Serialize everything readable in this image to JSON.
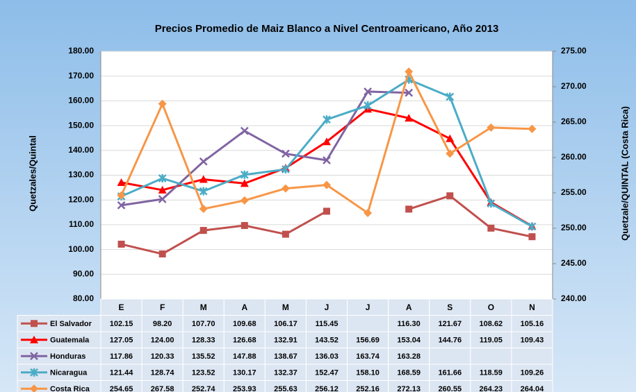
{
  "chart_data": {
    "type": "line",
    "title": "Precios Promedio de Maiz Blanco a Nivel Centroamericano, Año 2013",
    "y_label": "Quetzales/Quintal",
    "y2_label": "Quetzale/QUINTAL (Costa Rica)",
    "categories": [
      "E",
      "F",
      "M",
      "A",
      "M",
      "J",
      "J",
      "A",
      "S",
      "O",
      "N"
    ],
    "ylim": [
      80,
      180
    ],
    "yticks": [
      {
        "value": 80,
        "label": "80.00"
      },
      {
        "value": 90,
        "label": "90.00"
      },
      {
        "value": 100,
        "label": "100.00"
      },
      {
        "value": 110,
        "label": "110.00"
      },
      {
        "value": 120,
        "label": "120.00"
      },
      {
        "value": 130,
        "label": "130.00"
      },
      {
        "value": 140,
        "label": "140.00"
      },
      {
        "value": 150,
        "label": "150.00"
      },
      {
        "value": 160,
        "label": "160.00"
      },
      {
        "value": 170,
        "label": "170.00"
      },
      {
        "value": 180,
        "label": "180.00"
      }
    ],
    "y2lim": [
      240,
      275
    ],
    "y2ticks": [
      {
        "value": 240,
        "label": "240.00"
      },
      {
        "value": 245,
        "label": "245.00"
      },
      {
        "value": 250,
        "label": "250.00"
      },
      {
        "value": 255,
        "label": "255.00"
      },
      {
        "value": 260,
        "label": "260.00"
      },
      {
        "value": 265,
        "label": "265.00"
      },
      {
        "value": 270,
        "label": "270.00"
      },
      {
        "value": 275,
        "label": "275.00"
      }
    ],
    "grid": true,
    "series": [
      {
        "name": "El Salvador",
        "color": "#c0504d",
        "marker": "square",
        "values": [
          102.15,
          98.2,
          107.7,
          109.68,
          106.17,
          115.45,
          null,
          116.3,
          121.67,
          108.62,
          105.16
        ],
        "value_labels": [
          "102.15",
          "98.20",
          "107.70",
          "109.68",
          "106.17",
          "115.45",
          null,
          "116.30",
          "121.67",
          "108.62",
          "105.16"
        ]
      },
      {
        "name": "Guatemala",
        "color": "#ff0000",
        "marker": "triangle",
        "values": [
          127.05,
          124,
          128.33,
          126.68,
          132.91,
          143.52,
          156.69,
          153.04,
          144.76,
          119.05,
          109.43
        ],
        "value_labels": [
          "127.05",
          "124.00",
          "128.33",
          "126.68",
          "132.91",
          "143.52",
          "156.69",
          "153.04",
          "144.76",
          "119.05",
          "109.43"
        ]
      },
      {
        "name": "Honduras",
        "color": "#8064a2",
        "marker": "x",
        "values": [
          117.86,
          120.33,
          135.52,
          147.88,
          138.67,
          136.03,
          163.74,
          163.28,
          null,
          null,
          null
        ],
        "value_labels": [
          "117.86",
          "120.33",
          "135.52",
          "147.88",
          "138.67",
          "136.03",
          "163.74",
          "163.28",
          null,
          null,
          null
        ]
      },
      {
        "name": "Nicaragua",
        "color": "#4bacc6",
        "marker": "star",
        "values": [
          121.44,
          128.74,
          123.52,
          130.17,
          132.37,
          152.47,
          158.1,
          168.59,
          161.66,
          118.59,
          109.26
        ],
        "value_labels": [
          "121.44",
          "128.74",
          "123.52",
          "130.17",
          "132.37",
          "152.47",
          "158.10",
          "168.59",
          "161.66",
          "118.59",
          "109.26"
        ]
      },
      {
        "name": "Costa Rica",
        "color": "#f79646",
        "marker": "diamond",
        "axis": "y2",
        "values": [
          254.65,
          267.58,
          252.74,
          253.93,
          255.63,
          256.12,
          252.16,
          272.13,
          260.55,
          264.23,
          264.04
        ],
        "value_labels": [
          "254.65",
          "267.58",
          "252.74",
          "253.93",
          "255.63",
          "256.12",
          "252.16",
          "272.13",
          "260.55",
          "264.23",
          "264.04"
        ]
      }
    ]
  }
}
